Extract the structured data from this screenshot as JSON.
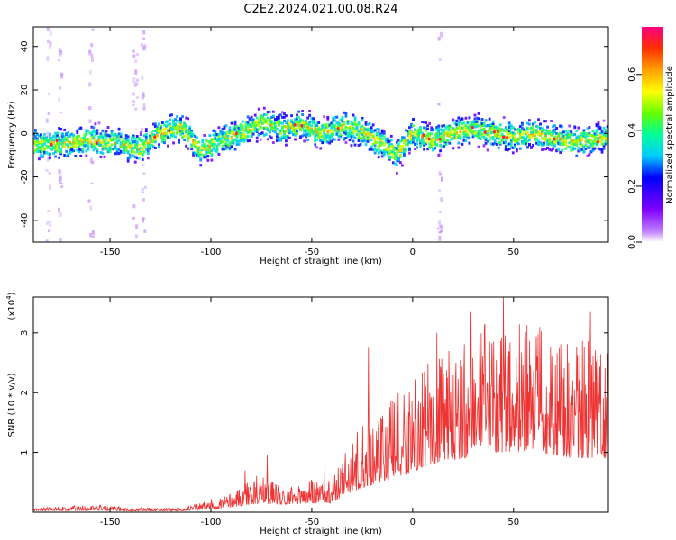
{
  "title": "C2E2.2024.021.00.08.R24",
  "chart_data": [
    {
      "type": "heatmap",
      "name": "spectrogram",
      "xlabel": "Height of straight line (km)",
      "ylabel": "Frequency (Hz)",
      "xlim": [
        -188,
        97
      ],
      "ylim": [
        -50,
        49
      ],
      "x_ticks": [
        -150,
        -100,
        -50,
        0,
        50
      ],
      "y_ticks": [
        -40,
        -20,
        0,
        20,
        40
      ],
      "colorbar": {
        "label": "Normalized spectral amplitude",
        "range": [
          0.0,
          0.77
        ],
        "ticks": [
          0.0,
          0.2,
          0.4,
          0.6
        ],
        "tick_labels": [
          "0.0",
          "0.2",
          "0.4",
          "0.6"
        ],
        "colors": [
          "#ffffff",
          "#c080ff",
          "#8000ff",
          "#0000ff",
          "#00ccff",
          "#00ff99",
          "#66ff00",
          "#ffff00",
          "#ffa000",
          "#ff3000",
          "#ff0080"
        ]
      },
      "ridge_profile": [
        {
          "x": -188,
          "y": -5
        },
        {
          "x": -175,
          "y": -5
        },
        {
          "x": -160,
          "y": -3
        },
        {
          "x": -145,
          "y": -5
        },
        {
          "x": -135,
          "y": -7
        },
        {
          "x": -125,
          "y": 0
        },
        {
          "x": -115,
          "y": 3
        },
        {
          "x": -105,
          "y": -8
        },
        {
          "x": -95,
          "y": -3
        },
        {
          "x": -85,
          "y": 0
        },
        {
          "x": -75,
          "y": 5
        },
        {
          "x": -65,
          "y": 2
        },
        {
          "x": -55,
          "y": 4
        },
        {
          "x": -45,
          "y": 0
        },
        {
          "x": -35,
          "y": 3
        },
        {
          "x": -25,
          "y": 1
        },
        {
          "x": -15,
          "y": -5
        },
        {
          "x": -8,
          "y": -10
        },
        {
          "x": 0,
          "y": 0
        },
        {
          "x": 10,
          "y": -3
        },
        {
          "x": 20,
          "y": 0
        },
        {
          "x": 30,
          "y": 2
        },
        {
          "x": 40,
          "y": 0
        },
        {
          "x": 50,
          "y": -2
        },
        {
          "x": 60,
          "y": 0
        },
        {
          "x": 70,
          "y": -2
        },
        {
          "x": 80,
          "y": -4
        },
        {
          "x": 97,
          "y": -2
        }
      ]
    },
    {
      "type": "line",
      "name": "snr",
      "xlabel": "Height of straight line (km)",
      "ylabel": "SNR (10 * v/v)",
      "y_scale_label": "(x10",
      "y_scale_exp": "4",
      "y_scale_close": ")",
      "xlim": [
        -188,
        97
      ],
      "ylim": [
        0,
        3.6
      ],
      "x_ticks": [
        -150,
        -100,
        -50,
        0,
        50
      ],
      "y_ticks": [
        1,
        2,
        3
      ],
      "line_color": "#ee3333",
      "envelope": [
        {
          "x": -188,
          "base": 0.02,
          "amp": 0.05
        },
        {
          "x": -160,
          "base": 0.03,
          "amp": 0.1
        },
        {
          "x": -140,
          "base": 0.02,
          "amp": 0.06
        },
        {
          "x": -115,
          "base": 0.02,
          "amp": 0.05
        },
        {
          "x": -103,
          "base": 0.04,
          "amp": 0.15
        },
        {
          "x": -90,
          "base": 0.08,
          "amp": 0.25
        },
        {
          "x": -75,
          "base": 0.15,
          "amp": 0.55
        },
        {
          "x": -65,
          "base": 0.12,
          "amp": 0.3
        },
        {
          "x": -50,
          "base": 0.15,
          "amp": 0.4
        },
        {
          "x": -40,
          "base": 0.15,
          "amp": 0.4
        },
        {
          "x": -33,
          "base": 0.3,
          "amp": 0.8
        },
        {
          "x": -25,
          "base": 0.4,
          "amp": 1.1
        },
        {
          "x": -15,
          "base": 0.5,
          "amp": 1.3
        },
        {
          "x": -5,
          "base": 0.6,
          "amp": 1.5
        },
        {
          "x": 10,
          "base": 0.8,
          "amp": 1.8
        },
        {
          "x": 25,
          "base": 0.9,
          "amp": 2.0
        },
        {
          "x": 40,
          "base": 1.0,
          "amp": 2.3
        },
        {
          "x": 60,
          "base": 1.0,
          "amp": 2.1
        },
        {
          "x": 80,
          "base": 0.9,
          "amp": 2.0
        },
        {
          "x": 97,
          "base": 0.9,
          "amp": 1.9
        }
      ],
      "peaks": [
        {
          "x": 45,
          "y": 3.6
        },
        {
          "x": 29,
          "y": 3.35
        },
        {
          "x": 88,
          "y": 3.35
        },
        {
          "x": -22,
          "y": 2.75
        },
        {
          "x": -72,
          "y": 0.95
        },
        {
          "x": -44,
          "y": 0.82
        },
        {
          "x": -83,
          "y": 0.7
        },
        {
          "x": 63,
          "y": 3.1
        },
        {
          "x": 12,
          "y": 3.0
        }
      ]
    }
  ]
}
